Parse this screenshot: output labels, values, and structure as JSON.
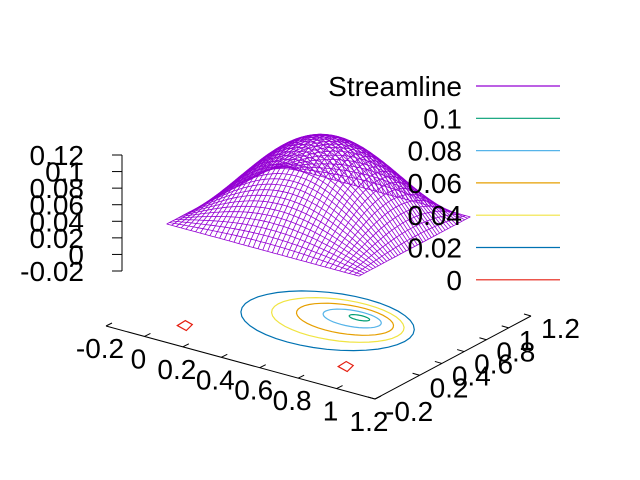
{
  "chart_data": {
    "type": "surface3d",
    "title": "",
    "xlabel": "",
    "ylabel": "",
    "zlabel": "",
    "x_ticks": [
      "-0.2",
      "0",
      "0.2",
      "0.4",
      "0.6",
      "0.8",
      "1",
      "1.2"
    ],
    "y_ticks": [
      "-0.2",
      "0.2",
      "0.4",
      "0.6",
      "0.8",
      "1",
      "1.2"
    ],
    "z_ticks": [
      "0.12",
      "0.1",
      "0.08",
      "0.06",
      "0.04",
      "0.02",
      "0",
      "-0.02"
    ],
    "xlim": [
      -0.2,
      1.2
    ],
    "ylim": [
      -0.2,
      1.2
    ],
    "zlim": [
      -0.02,
      0.12
    ],
    "grid": false,
    "legend_position": "top-right",
    "surface": {
      "name": "Streamline",
      "color": "#9400d3",
      "domain_x": [
        0,
        1
      ],
      "domain_y": [
        0,
        1
      ],
      "peak_value": 0.12
    },
    "contour_levels": [
      {
        "label": "0.1",
        "value": 0.1,
        "color": "#009e73"
      },
      {
        "label": "0.08",
        "value": 0.08,
        "color": "#56b4e9"
      },
      {
        "label": "0.06",
        "value": 0.06,
        "color": "#e69f00"
      },
      {
        "label": "0.04",
        "value": 0.04,
        "color": "#f0e442"
      },
      {
        "label": "0.02",
        "value": 0.02,
        "color": "#0072b2"
      },
      {
        "label": "0",
        "value": 0,
        "color": "#e51e10"
      }
    ]
  }
}
